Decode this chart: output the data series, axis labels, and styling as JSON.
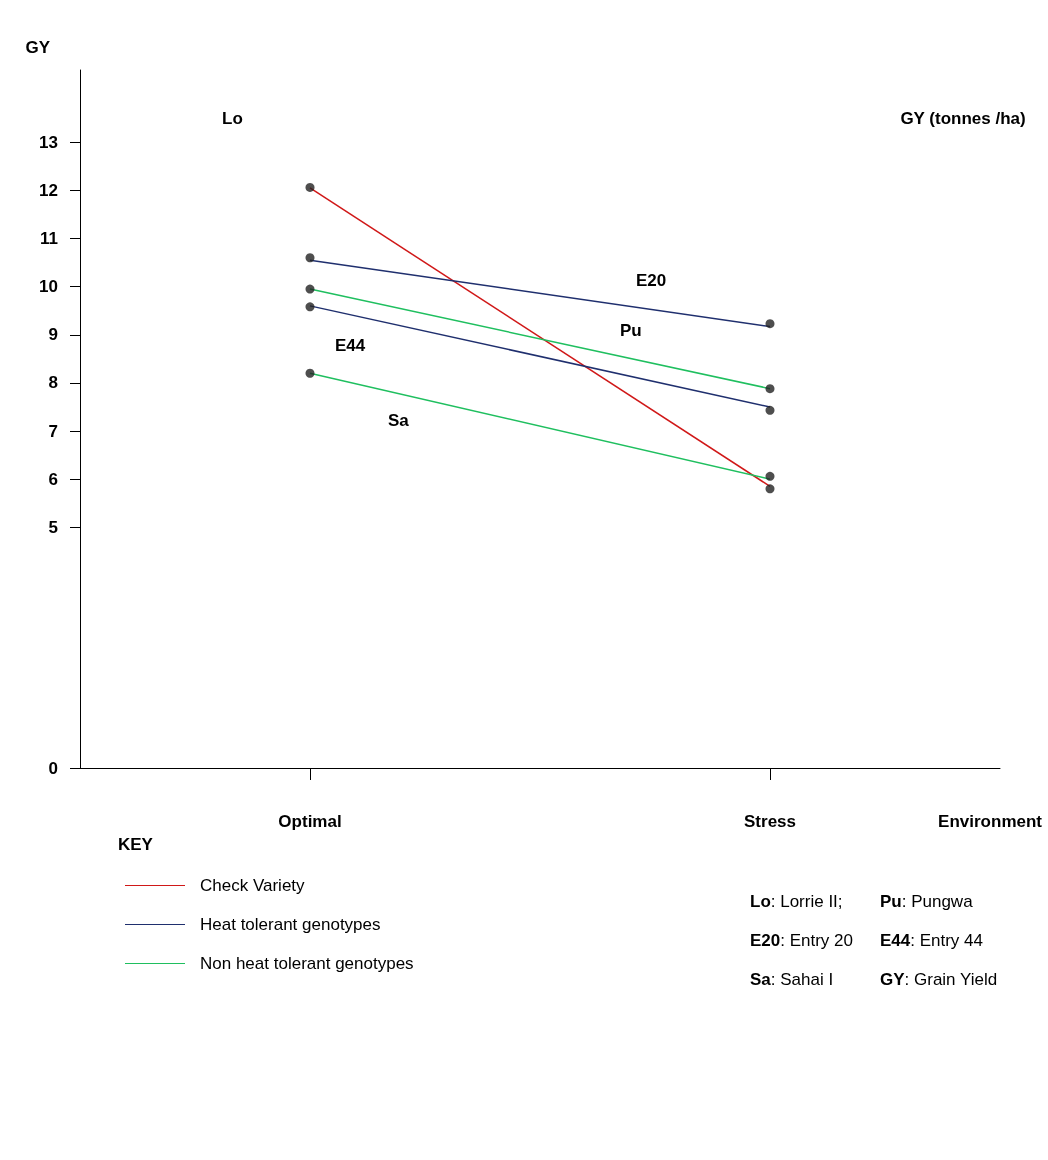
{
  "chart_data": {
    "type": "line",
    "ylabel": "GY",
    "xlabel": "Environment",
    "categories": [
      "Optimal",
      "Stress"
    ],
    "ylim": [
      0,
      14.5
    ],
    "yticks": [
      0,
      5,
      6,
      7,
      8,
      9,
      10,
      11,
      12,
      13
    ],
    "grid": false,
    "legend": "bottom left",
    "marker": "none",
    "series": [
      {
        "name": "Check Variety",
        "color": "#d01818",
        "values": [
          12.05,
          5.85
        ]
      },
      {
        "name": "Heat tolerant genotypes",
        "color": "#1f2f6e",
        "values": [
          10.55,
          9.17
        ]
      },
      {
        "name": "Non heat tolerant genotypes",
        "color": "#1fbf5f",
        "values": [
          9.95,
          7.88
        ]
      },
      {
        "color": "#1f2f6e",
        "values": [
          9.6,
          7.5
        ]
      },
      {
        "color": "#1fbf5f",
        "values": [
          8.2,
          6.0
        ]
      },
      {
        "type": "scatter",
        "marker": "circle",
        "color": "#222222",
        "x": [
          "Optimal",
          "Optimal",
          "Optimal",
          "Optimal",
          "Optimal",
          "Stress",
          "Stress",
          "Stress",
          "Stress",
          "Stress"
        ],
        "values": [
          12.06,
          10.6,
          9.95,
          9.58,
          8.2,
          5.8,
          9.23,
          7.88,
          7.43,
          6.06
        ]
      }
    ],
    "annotations": [
      "GY (tonnes /ha)",
      "KEY",
      "Lo: Lorrie II;",
      "Pu: Pungwa",
      "E20: Entry 20",
      "E44: Entry 44",
      "Sa: Sahai I",
      "GY: Grain Yield",
      "Lo",
      "E20",
      "Pu",
      "E44",
      "Sa"
    ]
  }
}
